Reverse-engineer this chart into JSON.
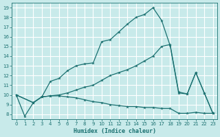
{
  "xlabel": "Humidex (Indice chaleur)",
  "bg_color": "#c8eaea",
  "grid_color": "#ffffff",
  "line_color": "#1a7070",
  "xlim": [
    -0.5,
    23.5
  ],
  "ylim": [
    7.5,
    19.5
  ],
  "xticks": [
    0,
    1,
    2,
    3,
    4,
    5,
    6,
    7,
    8,
    9,
    10,
    11,
    12,
    13,
    14,
    15,
    16,
    17,
    18,
    19,
    20,
    21,
    22,
    23
  ],
  "yticks": [
    8,
    9,
    10,
    11,
    12,
    13,
    14,
    15,
    16,
    17,
    18,
    19
  ],
  "line1_x": [
    0,
    1,
    2,
    3,
    4,
    5,
    6,
    7,
    8,
    9,
    10,
    11,
    12,
    13,
    14,
    15,
    16,
    17,
    18,
    19,
    20,
    21,
    22,
    23
  ],
  "line1_y": [
    10,
    7.8,
    9.2,
    9.8,
    11.4,
    11.7,
    12.5,
    13.0,
    13.2,
    13.3,
    15.5,
    15.7,
    16.5,
    17.3,
    18.0,
    18.3,
    19.0,
    17.7,
    15.1,
    10.2,
    10.1,
    12.3,
    10.2,
    8.1
  ],
  "line2_x": [
    0,
    2,
    3,
    4,
    5,
    6,
    7,
    8,
    9,
    10,
    11,
    12,
    13,
    14,
    15,
    16,
    17,
    18,
    19,
    20,
    21,
    22,
    23
  ],
  "line2_y": [
    10,
    9.2,
    9.8,
    9.9,
    10.0,
    10.2,
    10.5,
    10.8,
    11.0,
    11.5,
    12.0,
    12.3,
    12.6,
    13.0,
    13.5,
    14.0,
    15.0,
    15.2,
    10.3,
    10.1,
    12.3,
    10.2,
    8.1
  ],
  "line3_x": [
    0,
    2,
    3,
    4,
    5,
    6,
    7,
    8,
    9,
    10,
    11,
    12,
    13,
    14,
    15,
    16,
    17,
    18,
    19,
    20,
    21,
    22,
    23
  ],
  "line3_y": [
    10,
    9.2,
    9.8,
    9.9,
    9.9,
    9.8,
    9.7,
    9.5,
    9.3,
    9.2,
    9.0,
    8.9,
    8.8,
    8.8,
    8.7,
    8.7,
    8.6,
    8.6,
    8.1,
    8.1,
    8.2,
    8.1,
    8.1
  ]
}
